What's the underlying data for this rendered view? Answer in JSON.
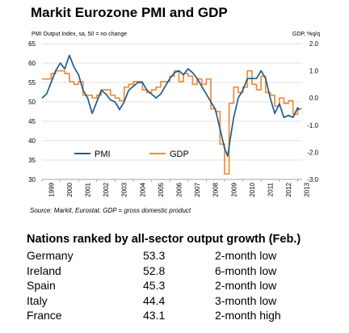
{
  "header": {
    "title": "Markit Eurozone PMI and GDP",
    "left_axis_caption": "PMI Output Index, sa, 50 = no change",
    "right_axis_caption": "GDP, %q/q",
    "source": "Source: Markit, Eurostat. GDP = gross domestic product"
  },
  "colors": {
    "pmi": "#1f5d8f",
    "gdp": "#f28c35",
    "grid": "#d9d9d9"
  },
  "chart_data": {
    "type": "line",
    "title": "Markit Eurozone PMI and GDP",
    "x_range": [
      1999.0,
      2013.25
    ],
    "x_tick_labels": [
      "1999",
      "2000",
      "2001",
      "2002",
      "2003",
      "2004",
      "2005",
      "2006",
      "2007",
      "2008",
      "2009",
      "2010",
      "2011",
      "2012",
      "2013"
    ],
    "left_axis": {
      "label": "PMI Output Index, sa, 50 = no change",
      "range": [
        30,
        65
      ],
      "ticks": [
        30,
        35,
        40,
        45,
        50,
        55,
        60,
        65
      ]
    },
    "right_axis": {
      "label": "GDP, %q/q",
      "range": [
        -3.0,
        2.0
      ],
      "ticks": [
        "-3.0",
        "-2.0",
        "-1.0",
        "0.0",
        "1.0",
        "2.0"
      ]
    },
    "grid": true,
    "legend": {
      "position": "bottom-center",
      "entries": [
        "PMI",
        "GDP"
      ]
    },
    "series": [
      {
        "name": "PMI",
        "axis": "left",
        "points": [
          [
            1999.0,
            51
          ],
          [
            1999.25,
            52
          ],
          [
            1999.5,
            55
          ],
          [
            1999.75,
            58
          ],
          [
            2000.0,
            60
          ],
          [
            2000.25,
            58.5
          ],
          [
            2000.5,
            62
          ],
          [
            2000.75,
            59
          ],
          [
            2001.0,
            57
          ],
          [
            2001.25,
            53
          ],
          [
            2001.5,
            51
          ],
          [
            2001.75,
            47
          ],
          [
            2002.0,
            50
          ],
          [
            2002.25,
            53
          ],
          [
            2002.5,
            52
          ],
          [
            2002.75,
            50.5
          ],
          [
            2003.0,
            50
          ],
          [
            2003.25,
            48
          ],
          [
            2003.5,
            50
          ],
          [
            2003.75,
            53
          ],
          [
            2004.0,
            54
          ],
          [
            2004.25,
            55
          ],
          [
            2004.5,
            55
          ],
          [
            2004.75,
            53
          ],
          [
            2005.0,
            52
          ],
          [
            2005.25,
            51
          ],
          [
            2005.5,
            52
          ],
          [
            2005.75,
            54
          ],
          [
            2006.0,
            56
          ],
          [
            2006.25,
            57.5
          ],
          [
            2006.5,
            58
          ],
          [
            2006.75,
            57
          ],
          [
            2007.0,
            58.5
          ],
          [
            2007.25,
            57.5
          ],
          [
            2007.5,
            56
          ],
          [
            2007.75,
            54
          ],
          [
            2008.0,
            52
          ],
          [
            2008.25,
            50
          ],
          [
            2008.5,
            48
          ],
          [
            2008.75,
            43
          ],
          [
            2009.0,
            38
          ],
          [
            2009.17,
            36
          ],
          [
            2009.33,
            41
          ],
          [
            2009.5,
            46
          ],
          [
            2009.75,
            51
          ],
          [
            2010.0,
            53
          ],
          [
            2010.25,
            56
          ],
          [
            2010.5,
            56
          ],
          [
            2010.75,
            56
          ],
          [
            2011.0,
            58
          ],
          [
            2011.25,
            56
          ],
          [
            2011.5,
            51
          ],
          [
            2011.75,
            47
          ],
          [
            2012.0,
            49.5
          ],
          [
            2012.25,
            46
          ],
          [
            2012.5,
            46.5
          ],
          [
            2012.75,
            46
          ],
          [
            2013.0,
            48.5
          ],
          [
            2013.1,
            47.9
          ]
        ]
      },
      {
        "name": "GDP",
        "axis": "right",
        "points": [
          [
            1999.0,
            0.7
          ],
          [
            1999.25,
            0.7
          ],
          [
            1999.5,
            0.9
          ],
          [
            1999.75,
            1.0
          ],
          [
            2000.0,
            1.0
          ],
          [
            2000.25,
            0.9
          ],
          [
            2000.5,
            0.6
          ],
          [
            2000.75,
            0.5
          ],
          [
            2001.0,
            0.6
          ],
          [
            2001.25,
            0.1
          ],
          [
            2001.5,
            0.1
          ],
          [
            2001.75,
            0.0
          ],
          [
            2002.0,
            0.1
          ],
          [
            2002.25,
            0.3
          ],
          [
            2002.5,
            0.3
          ],
          [
            2002.75,
            0.1
          ],
          [
            2003.0,
            0.0
          ],
          [
            2003.25,
            -0.1
          ],
          [
            2003.5,
            0.4
          ],
          [
            2003.75,
            0.5
          ],
          [
            2004.0,
            0.6
          ],
          [
            2004.25,
            0.6
          ],
          [
            2004.5,
            0.3
          ],
          [
            2004.75,
            0.2
          ],
          [
            2005.0,
            0.3
          ],
          [
            2005.25,
            0.4
          ],
          [
            2005.5,
            0.6
          ],
          [
            2005.75,
            0.6
          ],
          [
            2006.0,
            0.8
          ],
          [
            2006.25,
            1.0
          ],
          [
            2006.5,
            0.6
          ],
          [
            2006.75,
            0.9
          ],
          [
            2007.0,
            0.8
          ],
          [
            2007.25,
            0.5
          ],
          [
            2007.5,
            0.7
          ],
          [
            2007.75,
            0.5
          ],
          [
            2008.0,
            0.7
          ],
          [
            2008.25,
            -0.4
          ],
          [
            2008.5,
            -0.5
          ],
          [
            2008.75,
            -1.7
          ],
          [
            2009.0,
            -2.8
          ],
          [
            2009.25,
            -0.2
          ],
          [
            2009.5,
            0.4
          ],
          [
            2009.75,
            0.2
          ],
          [
            2010.0,
            0.4
          ],
          [
            2010.25,
            1.0
          ],
          [
            2010.5,
            0.5
          ],
          [
            2010.75,
            0.3
          ],
          [
            2011.0,
            0.8
          ],
          [
            2011.25,
            0.2
          ],
          [
            2011.5,
            0.1
          ],
          [
            2011.75,
            -0.3
          ],
          [
            2012.0,
            0.0
          ],
          [
            2012.25,
            -0.2
          ],
          [
            2012.5,
            -0.1
          ],
          [
            2012.75,
            -0.6
          ],
          [
            2013.0,
            -0.4
          ]
        ]
      }
    ]
  },
  "ranking": {
    "title": "Nations ranked by all-sector output growth (Feb.)",
    "rows": [
      {
        "country": "Germany",
        "value": "53.3",
        "note": "2-month low"
      },
      {
        "country": "Ireland",
        "value": "52.8",
        "note": "6-month low"
      },
      {
        "country": "Spain",
        "value": "45.3",
        "note": "2-month low"
      },
      {
        "country": "Italy",
        "value": "44.4",
        "note": "3-month low"
      },
      {
        "country": "France",
        "value": "43.1",
        "note": "2-month high"
      }
    ]
  }
}
